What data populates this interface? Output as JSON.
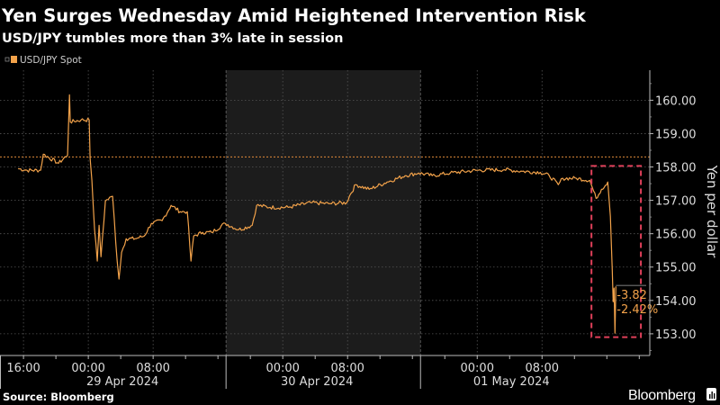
{
  "chart_data": {
    "type": "line",
    "title": "Yen Surges Wednesday Amid Heightened Intervention Risk",
    "subtitle": "USD/JPY tumbles more than 3% late in session",
    "legend": [
      {
        "name": "USD/JPY Spot",
        "color": "#f2a24a"
      }
    ],
    "legend_placement": "top-left",
    "ylabel": "Yen per dollar",
    "xunit": "hours relative to 29 Apr 2024 00:00",
    "xlim": [
      -10.9,
      69.3
    ],
    "ylim": [
      152.35,
      160.9
    ],
    "grid": true,
    "y_ticks": [
      {
        "value": 153,
        "label": "153.00"
      },
      {
        "value": 154,
        "label": "154.00"
      },
      {
        "value": 155,
        "label": "155.00"
      },
      {
        "value": 156,
        "label": "156.00"
      },
      {
        "value": 157,
        "label": "157.00"
      },
      {
        "value": 158,
        "label": "158.00"
      },
      {
        "value": 159,
        "label": "159.00"
      },
      {
        "value": 160,
        "label": "160.00"
      }
    ],
    "x_ticks": [
      {
        "value": -8,
        "label": "16:00"
      },
      {
        "value": 0,
        "label": "00:00"
      },
      {
        "value": 8,
        "label": "08:00"
      },
      {
        "value": 24,
        "label": "00:00"
      },
      {
        "value": 32,
        "label": "08:00"
      },
      {
        "value": 48,
        "label": "00:00"
      },
      {
        "value": 56,
        "label": "08:00"
      }
    ],
    "day_labels": [
      {
        "center": 4,
        "label": "29 Apr 2024"
      },
      {
        "center": 28,
        "label": "30 Apr 2024"
      },
      {
        "center": 52,
        "label": "01 May 2024"
      }
    ],
    "day_boundaries": [
      17,
      41
    ],
    "shaded_range": [
      17,
      41
    ],
    "reference_line": 158.3,
    "highlight_box": {
      "x": [
        62.1,
        68.2
      ],
      "y": [
        152.9,
        158.03
      ],
      "color": "#e0405a"
    },
    "annotation": {
      "level": 154.45,
      "change": "-3.82",
      "pct_change": "-2.42%"
    },
    "series": [
      {
        "name": "USD/JPY Spot",
        "color": "#f2a24a",
        "points": [
          [
            -8.67,
            157.95
          ],
          [
            -7.56,
            157.9
          ],
          [
            -5.89,
            157.9
          ],
          [
            -5.56,
            158.38
          ],
          [
            -3.67,
            158.11
          ],
          [
            -2.56,
            158.36
          ],
          [
            -2.33,
            160.16
          ],
          [
            -2.22,
            159.35
          ],
          [
            -0.89,
            159.41
          ],
          [
            0.11,
            159.41
          ],
          [
            0.22,
            158.27
          ],
          [
            0.44,
            157.6
          ],
          [
            0.78,
            156.12
          ],
          [
            1.11,
            155.18
          ],
          [
            1.33,
            156.25
          ],
          [
            1.56,
            155.31
          ],
          [
            2.11,
            156.98
          ],
          [
            3.0,
            157.12
          ],
          [
            3.22,
            156.39
          ],
          [
            3.56,
            155.18
          ],
          [
            3.78,
            154.64
          ],
          [
            4.11,
            155.44
          ],
          [
            4.67,
            155.85
          ],
          [
            5.78,
            155.85
          ],
          [
            6.89,
            155.93
          ],
          [
            7.78,
            156.31
          ],
          [
            9.11,
            156.39
          ],
          [
            10.22,
            156.85
          ],
          [
            11.33,
            156.66
          ],
          [
            12.22,
            156.66
          ],
          [
            12.67,
            155.18
          ],
          [
            13.0,
            155.93
          ],
          [
            14.11,
            156.04
          ],
          [
            15.22,
            156.04
          ],
          [
            16.89,
            156.31
          ],
          [
            18.56,
            156.12
          ],
          [
            20.22,
            156.25
          ],
          [
            20.78,
            156.85
          ],
          [
            22.44,
            156.79
          ],
          [
            24.67,
            156.79
          ],
          [
            27.44,
            156.93
          ],
          [
            29.67,
            156.9
          ],
          [
            31.89,
            156.93
          ],
          [
            32.22,
            157.12
          ],
          [
            33.0,
            157.47
          ],
          [
            34.67,
            157.33
          ],
          [
            36.89,
            157.55
          ],
          [
            39.11,
            157.74
          ],
          [
            40.78,
            157.82
          ],
          [
            42.44,
            157.74
          ],
          [
            44.67,
            157.82
          ],
          [
            48.0,
            157.9
          ],
          [
            51.33,
            157.92
          ],
          [
            53.56,
            157.87
          ],
          [
            55.78,
            157.84
          ],
          [
            56.89,
            157.74
          ],
          [
            58.0,
            157.47
          ],
          [
            58.56,
            157.66
          ],
          [
            60.22,
            157.66
          ],
          [
            61.89,
            157.6
          ],
          [
            62.67,
            157.06
          ],
          [
            63.33,
            157.33
          ],
          [
            64.11,
            157.55
          ],
          [
            64.44,
            156.52
          ],
          [
            64.67,
            154.91
          ],
          [
            64.78,
            153.96
          ],
          [
            64.89,
            154.37
          ],
          [
            65.0,
            153.02
          ],
          [
            65.11,
            154.42
          ]
        ]
      }
    ],
    "source": "Source: Bloomberg",
    "brand": "Bloomberg"
  }
}
